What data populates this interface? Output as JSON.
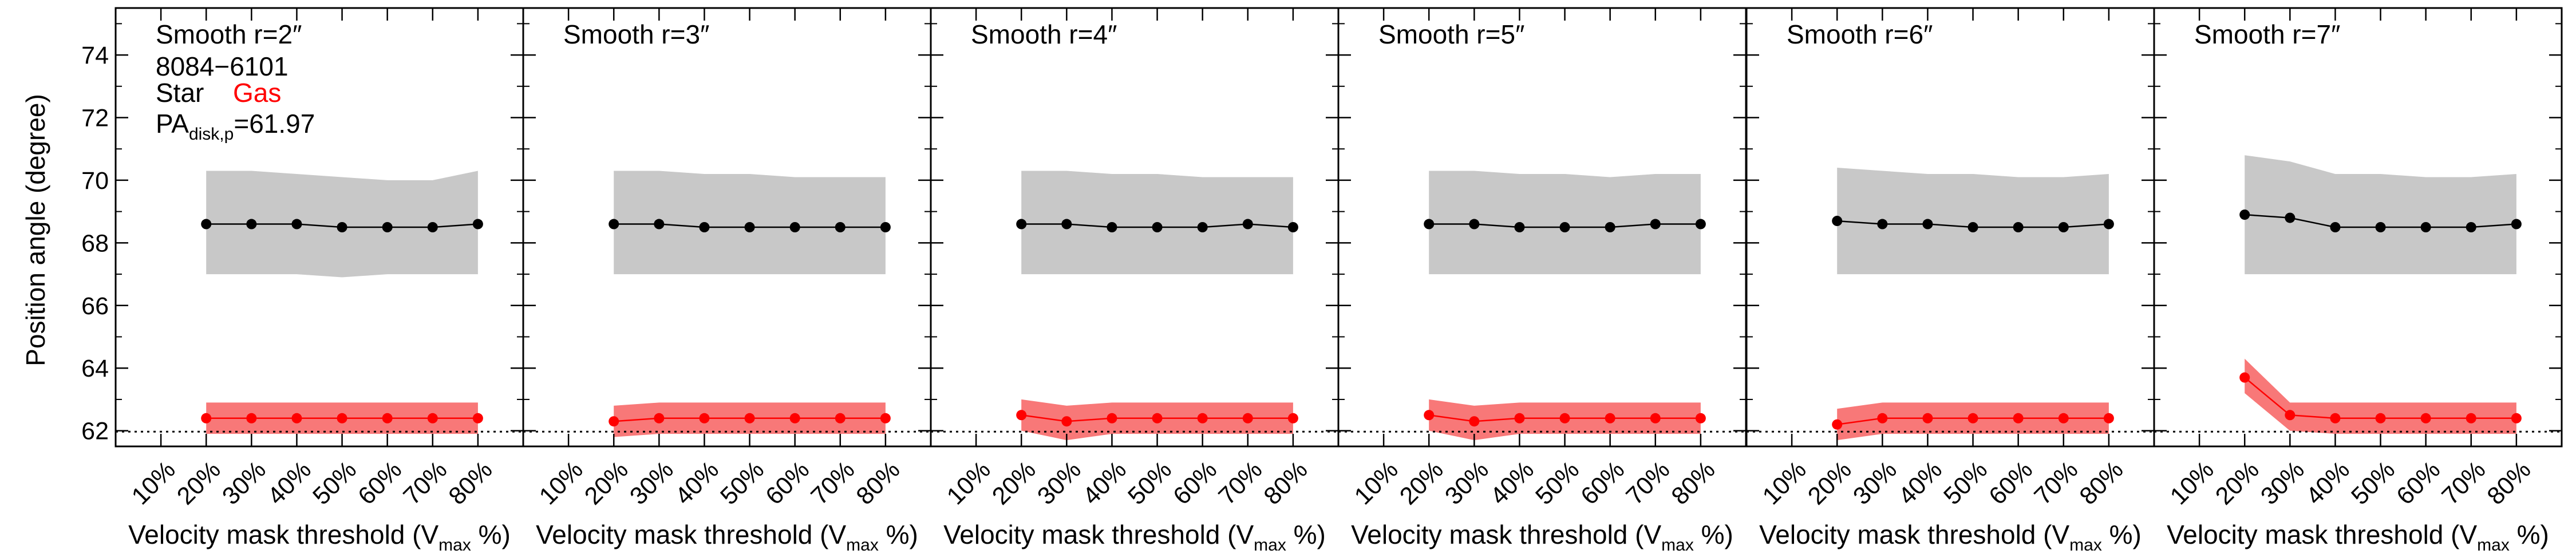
{
  "ylabel": "Position angle (degree)",
  "xlabel_main": "Velocity mask threshold (V",
  "xlabel_sub": "max",
  "xlabel_tail": " %)",
  "annotations": {
    "galaxy_id": "8084−6101",
    "legend_star": "Star",
    "legend_gas": "Gas",
    "pa_prefix": "PA",
    "pa_sub": "disk,p",
    "pa_value": "=61.97"
  },
  "colors": {
    "star": "#000000",
    "gas": "#ff0000",
    "star_band": "#c8c8c8",
    "gas_band": "#f87878"
  },
  "chart_data": [
    {
      "type": "line",
      "title": "Smooth r=2″",
      "categories": [
        "10%",
        "20%",
        "30%",
        "40%",
        "50%",
        "60%",
        "70%",
        "80%"
      ],
      "ylim": [
        61.5,
        75.5
      ],
      "yticks": [
        62,
        64,
        66,
        68,
        70,
        72,
        74
      ],
      "reference_line": 61.97,
      "series": [
        {
          "name": "Star",
          "x": [
            20,
            30,
            40,
            50,
            60,
            70,
            80
          ],
          "values": [
            68.6,
            68.6,
            68.6,
            68.5,
            68.5,
            68.5,
            68.6
          ],
          "band_low": [
            67.0,
            67.0,
            67.0,
            66.9,
            67.0,
            67.0,
            67.0
          ],
          "band_high": [
            70.3,
            70.3,
            70.2,
            70.1,
            70.0,
            70.0,
            70.3
          ]
        },
        {
          "name": "Gas",
          "x": [
            20,
            30,
            40,
            50,
            60,
            70,
            80
          ],
          "values": [
            62.4,
            62.4,
            62.4,
            62.4,
            62.4,
            62.4,
            62.4
          ],
          "band_low": [
            61.9,
            61.9,
            61.9,
            61.9,
            61.9,
            61.9,
            61.9
          ],
          "band_high": [
            62.9,
            62.9,
            62.9,
            62.9,
            62.9,
            62.9,
            62.9
          ]
        }
      ]
    },
    {
      "type": "line",
      "title": "Smooth r=3″",
      "categories": [
        "10%",
        "20%",
        "30%",
        "40%",
        "50%",
        "60%",
        "70%",
        "80%"
      ],
      "ylim": [
        61.5,
        75.5
      ],
      "yticks": [
        62,
        64,
        66,
        68,
        70,
        72,
        74
      ],
      "reference_line": 61.97,
      "series": [
        {
          "name": "Star",
          "x": [
            20,
            30,
            40,
            50,
            60,
            70,
            80
          ],
          "values": [
            68.6,
            68.6,
            68.5,
            68.5,
            68.5,
            68.5,
            68.5
          ],
          "band_low": [
            67.0,
            67.0,
            67.0,
            67.0,
            67.0,
            67.0,
            67.0
          ],
          "band_high": [
            70.3,
            70.3,
            70.2,
            70.2,
            70.1,
            70.1,
            70.1
          ]
        },
        {
          "name": "Gas",
          "x": [
            20,
            30,
            40,
            50,
            60,
            70,
            80
          ],
          "values": [
            62.3,
            62.4,
            62.4,
            62.4,
            62.4,
            62.4,
            62.4
          ],
          "band_low": [
            61.8,
            61.9,
            61.9,
            61.9,
            61.9,
            61.9,
            61.9
          ],
          "band_high": [
            62.8,
            62.9,
            62.9,
            62.9,
            62.9,
            62.9,
            62.9
          ]
        }
      ]
    },
    {
      "type": "line",
      "title": "Smooth r=4″",
      "categories": [
        "10%",
        "20%",
        "30%",
        "40%",
        "50%",
        "60%",
        "70%",
        "80%"
      ],
      "ylim": [
        61.5,
        75.5
      ],
      "yticks": [
        62,
        64,
        66,
        68,
        70,
        72,
        74
      ],
      "reference_line": 61.97,
      "series": [
        {
          "name": "Star",
          "x": [
            20,
            30,
            40,
            50,
            60,
            70,
            80
          ],
          "values": [
            68.6,
            68.6,
            68.5,
            68.5,
            68.5,
            68.6,
            68.5
          ],
          "band_low": [
            67.0,
            67.0,
            67.0,
            67.0,
            67.0,
            67.0,
            67.0
          ],
          "band_high": [
            70.3,
            70.3,
            70.2,
            70.2,
            70.1,
            70.1,
            70.1
          ]
        },
        {
          "name": "Gas",
          "x": [
            20,
            30,
            40,
            50,
            60,
            70,
            80
          ],
          "values": [
            62.5,
            62.3,
            62.4,
            62.4,
            62.4,
            62.4,
            62.4
          ],
          "band_low": [
            62.0,
            61.7,
            61.9,
            61.9,
            61.9,
            61.9,
            61.9
          ],
          "band_high": [
            63.0,
            62.8,
            62.9,
            62.9,
            62.9,
            62.9,
            62.9
          ]
        }
      ]
    },
    {
      "type": "line",
      "title": "Smooth r=5″",
      "categories": [
        "10%",
        "20%",
        "30%",
        "40%",
        "50%",
        "60%",
        "70%",
        "80%"
      ],
      "ylim": [
        61.5,
        75.5
      ],
      "yticks": [
        62,
        64,
        66,
        68,
        70,
        72,
        74
      ],
      "reference_line": 61.97,
      "series": [
        {
          "name": "Star",
          "x": [
            20,
            30,
            40,
            50,
            60,
            70,
            80
          ],
          "values": [
            68.6,
            68.6,
            68.5,
            68.5,
            68.5,
            68.6,
            68.6
          ],
          "band_low": [
            67.0,
            67.0,
            67.0,
            67.0,
            67.0,
            67.0,
            67.0
          ],
          "band_high": [
            70.3,
            70.3,
            70.2,
            70.2,
            70.1,
            70.2,
            70.2
          ]
        },
        {
          "name": "Gas",
          "x": [
            20,
            30,
            40,
            50,
            60,
            70,
            80
          ],
          "values": [
            62.5,
            62.3,
            62.4,
            62.4,
            62.4,
            62.4,
            62.4
          ],
          "band_low": [
            62.0,
            61.7,
            61.9,
            61.9,
            61.9,
            61.9,
            61.9
          ],
          "band_high": [
            63.0,
            62.8,
            62.9,
            62.9,
            62.9,
            62.9,
            62.9
          ]
        }
      ]
    },
    {
      "type": "line",
      "title": "Smooth r=6″",
      "categories": [
        "10%",
        "20%",
        "30%",
        "40%",
        "50%",
        "60%",
        "70%",
        "80%"
      ],
      "ylim": [
        61.5,
        75.5
      ],
      "yticks": [
        62,
        64,
        66,
        68,
        70,
        72,
        74
      ],
      "reference_line": 61.97,
      "series": [
        {
          "name": "Star",
          "x": [
            20,
            30,
            40,
            50,
            60,
            70,
            80
          ],
          "values": [
            68.7,
            68.6,
            68.6,
            68.5,
            68.5,
            68.5,
            68.6
          ],
          "band_low": [
            67.0,
            67.0,
            67.0,
            67.0,
            67.0,
            67.0,
            67.0
          ],
          "band_high": [
            70.4,
            70.3,
            70.2,
            70.2,
            70.1,
            70.1,
            70.2
          ]
        },
        {
          "name": "Gas",
          "x": [
            20,
            30,
            40,
            50,
            60,
            70,
            80
          ],
          "values": [
            62.2,
            62.4,
            62.4,
            62.4,
            62.4,
            62.4,
            62.4
          ],
          "band_low": [
            61.7,
            61.9,
            61.9,
            61.9,
            61.9,
            61.9,
            61.9
          ],
          "band_high": [
            62.7,
            62.9,
            62.9,
            62.9,
            62.9,
            62.9,
            62.9
          ]
        }
      ]
    },
    {
      "type": "line",
      "title": "Smooth r=7″",
      "categories": [
        "10%",
        "20%",
        "30%",
        "40%",
        "50%",
        "60%",
        "70%",
        "80%"
      ],
      "ylim": [
        61.5,
        75.5
      ],
      "yticks": [
        62,
        64,
        66,
        68,
        70,
        72,
        74
      ],
      "reference_line": 61.97,
      "series": [
        {
          "name": "Star",
          "x": [
            20,
            30,
            40,
            50,
            60,
            70,
            80
          ],
          "values": [
            68.9,
            68.8,
            68.5,
            68.5,
            68.5,
            68.5,
            68.6
          ],
          "band_low": [
            67.0,
            67.0,
            67.0,
            67.0,
            67.0,
            67.0,
            67.0
          ],
          "band_high": [
            70.8,
            70.6,
            70.2,
            70.2,
            70.1,
            70.1,
            70.2
          ]
        },
        {
          "name": "Gas",
          "x": [
            20,
            30,
            40,
            50,
            60,
            70,
            80
          ],
          "values": [
            63.7,
            62.5,
            62.4,
            62.4,
            62.4,
            62.4,
            62.4
          ],
          "band_low": [
            63.2,
            62.0,
            61.9,
            61.9,
            61.9,
            61.9,
            61.9
          ],
          "band_high": [
            64.3,
            62.9,
            62.9,
            62.9,
            62.9,
            62.9,
            62.9
          ]
        }
      ]
    }
  ]
}
